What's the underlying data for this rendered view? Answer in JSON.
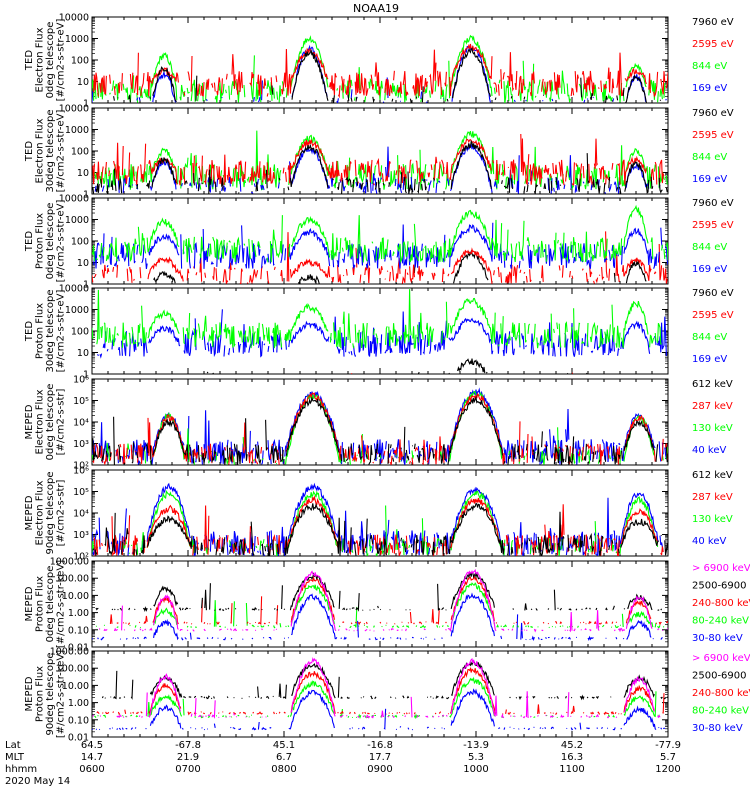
{
  "title": "NOAA19",
  "colors": {
    "black": "#000000",
    "red": "#ff0000",
    "green": "#00ff00",
    "blue": "#0000ff",
    "magenta": "#ff00ff"
  },
  "footer": {
    "row_labels": [
      "Lat",
      "MLT",
      "hhmm"
    ],
    "date": "2020 May 14",
    "ticks": [
      {
        "lat": "64.5",
        "mlt": "14.7",
        "time": "0600"
      },
      {
        "lat": "-67.8",
        "mlt": "21.9",
        "time": "0700"
      },
      {
        "lat": "45.1",
        "mlt": "6.7",
        "time": "0800"
      },
      {
        "lat": "-16.8",
        "mlt": "17.7",
        "time": "0900"
      },
      {
        "lat": "-13.9",
        "mlt": "5.3",
        "time": "1000"
      },
      {
        "lat": "45.2",
        "mlt": "16.3",
        "time": "1100"
      },
      {
        "lat": "-77.9",
        "mlt": "5.7",
        "time": "1200"
      }
    ]
  },
  "chart_data": [
    {
      "type": "line",
      "panel": 1,
      "ylabel": [
        "TED",
        "Electron Flux",
        "0deg telescope",
        "[#/cm2-s-str-eV]"
      ],
      "yscale": "log",
      "ylim": [
        1,
        10000
      ],
      "ytick_labels": [
        "1",
        "10",
        "100",
        "1000",
        "10000"
      ],
      "xlim": [
        "0600",
        "1200"
      ],
      "legend": [
        {
          "label": "7960 eV",
          "color": "#000000"
        },
        {
          "label": "2595 eV",
          "color": "#ff0000"
        },
        {
          "label": "844 eV",
          "color": "#00ff00"
        },
        {
          "label": "169 eV",
          "color": "#0000ff"
        }
      ],
      "order": [
        "#00ff00",
        "#0000ff",
        "#ff0000",
        "#000000"
      ],
      "base": [
        -0.2,
        0.9,
        0.5,
        -0.3
      ],
      "passes": [
        {
          "t": "0645",
          "w": "0008",
          "peak": [
            1.6,
            1.5,
            2.2,
            1.3
          ]
        },
        {
          "t": "0816",
          "w": "0012",
          "peak": [
            2.3,
            2.4,
            3.0,
            2.5
          ]
        },
        {
          "t": "0957",
          "w": "0013",
          "peak": [
            2.4,
            2.6,
            3.0,
            2.6
          ]
        },
        {
          "t": "1140",
          "w": "0007",
          "peak": [
            1.2,
            1.5,
            1.8,
            1.2
          ]
        }
      ]
    },
    {
      "type": "line",
      "panel": 2,
      "ylabel": [
        "TED",
        "Electron Flux",
        "30deg telescope",
        "[#/cm2-s-str-eV]"
      ],
      "yscale": "log",
      "ylim": [
        1,
        10000
      ],
      "ytick_labels": [
        "1",
        "10",
        "100",
        "1000",
        "10000"
      ],
      "xlim": [
        "0600",
        "1200"
      ],
      "legend": [
        {
          "label": "7960 eV",
          "color": "#000000"
        },
        {
          "label": "2595 eV",
          "color": "#ff0000"
        },
        {
          "label": "844 eV",
          "color": "#00ff00"
        },
        {
          "label": "169 eV",
          "color": "#0000ff"
        }
      ],
      "order": [
        "#00ff00",
        "#0000ff",
        "#ff0000",
        "#000000"
      ],
      "base": [
        0.2,
        1.0,
        0.8,
        0.2
      ],
      "passes": [
        {
          "t": "0645",
          "w": "0008",
          "peak": [
            1.6,
            1.6,
            2.0,
            1.5
          ]
        },
        {
          "t": "0816",
          "w": "0012",
          "peak": [
            2.2,
            2.4,
            2.6,
            2.1
          ]
        },
        {
          "t": "0957",
          "w": "0013",
          "peak": [
            2.3,
            2.5,
            2.8,
            2.2
          ]
        },
        {
          "t": "1140",
          "w": "0007",
          "peak": [
            1.4,
            1.6,
            2.0,
            1.3
          ]
        }
      ]
    },
    {
      "type": "line",
      "panel": 3,
      "ylabel": [
        "TED",
        "Proton Flux",
        "0deg telescope",
        "[#/cm2-s-str-eV]"
      ],
      "yscale": "log",
      "ylim": [
        1,
        10000
      ],
      "ytick_labels": [
        "1",
        "10",
        "100",
        "1000",
        "10000"
      ],
      "xlim": [
        "0600",
        "1200"
      ],
      "legend": [
        {
          "label": "7960 eV",
          "color": "#000000"
        },
        {
          "label": "2595 eV",
          "color": "#ff0000"
        },
        {
          "label": "844 eV",
          "color": "#00ff00"
        },
        {
          "label": "169 eV",
          "color": "#0000ff"
        }
      ],
      "order": [
        "#000000",
        "#ff0000",
        "#0000ff",
        "#00ff00"
      ],
      "base": [
        -0.5,
        0.3,
        1.6,
        1.3
      ],
      "passes": [
        {
          "t": "0645",
          "w": "0010",
          "peak": [
            0.5,
            1.2,
            2.9,
            2.2
          ]
        },
        {
          "t": "0816",
          "w": "0012",
          "peak": [
            0.3,
            1.0,
            3.0,
            2.4
          ]
        },
        {
          "t": "0957",
          "w": "0013",
          "peak": [
            1.4,
            1.5,
            3.3,
            2.6
          ]
        },
        {
          "t": "1140",
          "w": "0008",
          "peak": [
            1.0,
            1.1,
            3.5,
            2.5
          ]
        }
      ]
    },
    {
      "type": "line",
      "panel": 4,
      "ylabel": [
        "TED",
        "Proton Flux",
        "30deg telescope",
        "[#/cm2-s-str-eV]"
      ],
      "yscale": "log",
      "ylim": [
        1,
        10000
      ],
      "ytick_labels": [
        "1",
        "10",
        "100",
        "1000",
        "10000"
      ],
      "xlim": [
        "0600",
        "1200"
      ],
      "legend": [
        {
          "label": "7960 eV",
          "color": "#000000"
        },
        {
          "label": "2595 eV",
          "color": "#ff0000"
        },
        {
          "label": "844 eV",
          "color": "#00ff00"
        },
        {
          "label": "169 eV",
          "color": "#0000ff"
        }
      ],
      "order": [
        "#000000",
        "#ff0000",
        "#0000ff",
        "#00ff00"
      ],
      "base": [
        -0.5,
        -0.5,
        1.8,
        1.4
      ],
      "passes": [
        {
          "t": "0645",
          "w": "0010",
          "peak": [
            -0.5,
            -0.5,
            2.8,
            2.1
          ]
        },
        {
          "t": "0816",
          "w": "0012",
          "peak": [
            -0.5,
            -0.5,
            3.1,
            2.3
          ]
        },
        {
          "t": "0957",
          "w": "0013",
          "peak": [
            0.6,
            -0.5,
            3.4,
            2.5
          ]
        },
        {
          "t": "1140",
          "w": "0008",
          "peak": [
            -0.5,
            -0.5,
            3.3,
            2.3
          ]
        }
      ]
    },
    {
      "type": "line",
      "panel": 5,
      "ylabel": [
        "MEPED",
        "Electron Flux",
        "0deg telescope",
        "[#/cm2-s-str]"
      ],
      "yscale": "log",
      "ylim": [
        100,
        1000000
      ],
      "ytick_labels": [
        "10²",
        "10³",
        "10⁴",
        "10⁵",
        "10⁶"
      ],
      "xlim": [
        "0600",
        "1200"
      ],
      "legend": [
        {
          "label": "612 keV",
          "color": "#000000"
        },
        {
          "label": "287 keV",
          "color": "#ff0000"
        },
        {
          "label": "130 keV",
          "color": "#00ff00"
        },
        {
          "label": "40 keV",
          "color": "#0000ff"
        }
      ],
      "order": [
        "#0000ff",
        "#00ff00",
        "#ff0000",
        "#000000"
      ],
      "base": [
        2.4,
        2.4,
        2.1,
        2.6
      ],
      "passes": [
        {
          "t": "0648",
          "w": "0010",
          "peak": [
            4.0,
            4.2,
            4.3,
            4.3
          ]
        },
        {
          "t": "0818",
          "w": "0017",
          "peak": [
            5.0,
            5.2,
            5.2,
            5.3
          ]
        },
        {
          "t": "1000",
          "w": "0017",
          "peak": [
            5.0,
            5.2,
            5.3,
            5.4
          ]
        },
        {
          "t": "1142",
          "w": "0010",
          "peak": [
            4.0,
            4.2,
            4.2,
            4.3
          ]
        }
      ]
    },
    {
      "type": "line",
      "panel": 6,
      "ylabel": [
        "MEPED",
        "Electron Flux",
        "90deg telescope",
        "[#/cm2-s-str]"
      ],
      "yscale": "log",
      "ylim": [
        100,
        1000000
      ],
      "ytick_labels": [
        "10²",
        "10³",
        "10⁴",
        "10⁵",
        "10⁶"
      ],
      "xlim": [
        "0600",
        "1200"
      ],
      "legend": [
        {
          "label": "612 keV",
          "color": "#000000"
        },
        {
          "label": "287 keV",
          "color": "#ff0000"
        },
        {
          "label": "130 keV",
          "color": "#00ff00"
        },
        {
          "label": "40 keV",
          "color": "#0000ff"
        }
      ],
      "order": [
        "#0000ff",
        "#00ff00",
        "#ff0000",
        "#000000"
      ],
      "base": [
        2.4,
        2.4,
        2.2,
        2.6
      ],
      "passes": [
        {
          "t": "0648",
          "w": "0014",
          "peak": [
            3.7,
            4.2,
            4.9,
            5.2
          ]
        },
        {
          "t": "0818",
          "w": "0016",
          "peak": [
            4.3,
            4.6,
            4.9,
            5.2
          ]
        },
        {
          "t": "1000",
          "w": "0016",
          "peak": [
            4.3,
            4.6,
            4.9,
            5.1
          ]
        },
        {
          "t": "1142",
          "w": "0012",
          "peak": [
            3.6,
            4.1,
            4.6,
            4.9
          ]
        }
      ]
    },
    {
      "type": "line",
      "panel": 7,
      "ylabel": [
        "MEPED",
        "Proton Flux",
        "0deg telescope",
        "[#/cm2-s-str-keV]"
      ],
      "yscale": "log",
      "ylim": [
        0.01,
        1000
      ],
      "ytick_labels": [
        "0.01",
        "0.10",
        "1.00",
        "10.00",
        "100.00",
        "1000.00"
      ],
      "xlim": [
        "0600",
        "1200"
      ],
      "legend": [
        {
          "label": "> 6900 keV",
          "color": "#ff00ff"
        },
        {
          "label": "2500-6900",
          "color": "#000000"
        },
        {
          "label": "240-800 keV",
          "color": "#ff0000"
        },
        {
          "label": "80-240 keV",
          "color": "#00ff00"
        },
        {
          "label": "30-80 keV",
          "color": "#0000ff"
        }
      ],
      "order": [
        "#0000ff",
        "#00ff00",
        "#ff0000",
        "#000000",
        "#ff00ff"
      ],
      "base": [
        -1.0,
        0.2,
        -0.6,
        -0.8,
        -1.5
      ],
      "passes": [
        {
          "t": "0646",
          "w": "0008",
          "peak": [
            0.9,
            1.4,
            0.8,
            0.1,
            -0.6
          ]
        },
        {
          "t": "0818",
          "w": "0014",
          "peak": [
            2.3,
            2.1,
            1.9,
            1.5,
            0.9
          ]
        },
        {
          "t": "0958",
          "w": "0014",
          "peak": [
            2.4,
            2.2,
            2.0,
            1.6,
            1.0
          ]
        },
        {
          "t": "1142",
          "w": "0008",
          "peak": [
            0.9,
            0.9,
            0.6,
            -0.1,
            -0.6
          ]
        }
      ]
    },
    {
      "type": "line",
      "panel": 8,
      "ylabel": [
        "MEPED",
        "Proton Flux",
        "90deg telescope",
        "[#/cm2-s-str-keV]"
      ],
      "yscale": "log",
      "ylim": [
        0.01,
        1000
      ],
      "ytick_labels": [
        "0.01",
        "0.10",
        "1.00",
        "10.00",
        "100.00",
        "1000.00"
      ],
      "xlim": [
        "0600",
        "1200"
      ],
      "legend": [
        {
          "label": "> 6900 keV",
          "color": "#ff00ff"
        },
        {
          "label": "2500-6900",
          "color": "#000000"
        },
        {
          "label": "240-800 keV",
          "color": "#ff0000"
        },
        {
          "label": "80-240 keV",
          "color": "#00ff00"
        },
        {
          "label": "30-80 keV",
          "color": "#0000ff"
        }
      ],
      "order": [
        "#0000ff",
        "#00ff00",
        "#ff0000",
        "#000000",
        "#ff00ff"
      ],
      "base": [
        -0.8,
        0.3,
        -0.6,
        -0.8,
        -1.5
      ],
      "passes": [
        {
          "t": "0646",
          "w": "0010",
          "peak": [
            1.5,
            1.4,
            1.0,
            0.3,
            -0.3
          ]
        },
        {
          "t": "0818",
          "w": "0014",
          "peak": [
            2.4,
            2.2,
            1.7,
            1.1,
            0.6
          ]
        },
        {
          "t": "0958",
          "w": "0014",
          "peak": [
            2.4,
            2.3,
            1.9,
            1.3,
            0.6
          ]
        },
        {
          "t": "1142",
          "w": "0010",
          "peak": [
            1.4,
            1.4,
            0.8,
            0.3,
            -0.4
          ]
        }
      ]
    }
  ]
}
